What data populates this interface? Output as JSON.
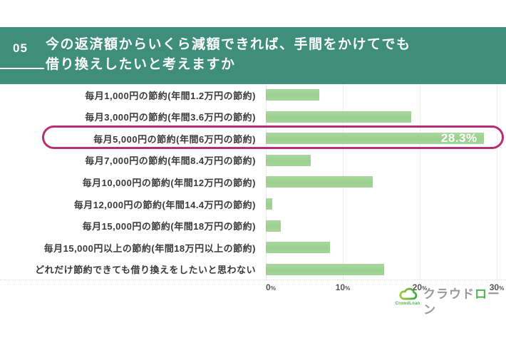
{
  "header": {
    "number": "05",
    "title_line1": "今の返済額からいくら減額できれば、手間をかけてでも",
    "title_line2": "借り換えしたいと考えますか"
  },
  "chart_data": {
    "type": "bar",
    "orientation": "horizontal",
    "title": "今の返済額からいくら減額できれば、手間をかけてでも借り換えしたいと考えますか",
    "categories": [
      "毎月1,000円の節約(年間1.2万円の節約)",
      "毎月3,000円の節約(年間3.6万円の節約)",
      "毎月5,000円の節約(年間6万円の節約)",
      "毎月7,000円の節約(年間8.4万円の節約)",
      "毎月10,000円の節約(年間12万円の節約)",
      "毎月12,000円の節約(年間14.4万円の節約)",
      "毎月15,000円の節約(年間18万円の節約)",
      "毎月15,000円以上の節約(年間18万円以上の節約)",
      "どれだけ節約できても借り換えをしたいと思わない"
    ],
    "values": [
      6.9,
      18.9,
      28.3,
      5.8,
      13.9,
      0.8,
      1.9,
      8.3,
      15.4
    ],
    "unit": "%",
    "highlighted_index": 2,
    "highlighted_value_label": "28.3%",
    "x_ticks": [
      0,
      10,
      20,
      30
    ],
    "x_tick_unit": "%",
    "xlim": [
      0,
      30
    ],
    "grid": "vertical-light",
    "legend": "none"
  },
  "footer": {
    "logo": {
      "subtext": "CrowdLoan",
      "brand_part1": "クラウド",
      "brand_ro": "ロ",
      "brand_part2": "ーン",
      "brand_full": "クラウドローン"
    }
  },
  "colors": {
    "header_bg": "#3E8E7B",
    "bar_green": "#A3D399",
    "highlight_pink": "#B62E74",
    "label_text": "#3A3A3A",
    "axis_text": "#555555",
    "grid_line": "#EDEDED",
    "brand_gray": "#999999",
    "brand_green": "#54B054"
  }
}
